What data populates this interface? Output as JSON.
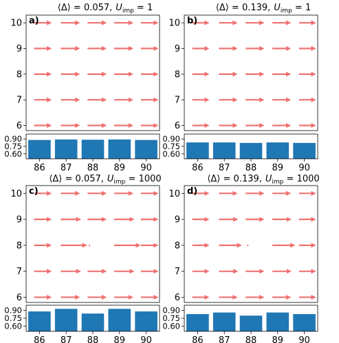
{
  "colors": {
    "arrow": "#f07070",
    "bar": "#1f77b4",
    "axis": "#000000"
  },
  "chart_data": [
    {
      "type": "quiver",
      "panel_label": "a)",
      "title_delta": "⟨Δ⟩ = 0.057,",
      "title_u": "1",
      "x_ticks": [
        86,
        87,
        88,
        89,
        90
      ],
      "y_ticks": [
        6,
        7,
        8,
        9,
        10
      ],
      "xlim": [
        85.5,
        90.5
      ],
      "ylim": [
        5.8,
        10.3
      ],
      "arrows": [
        {
          "y": 10,
          "lengths": [
            0.62,
            0.68,
            0.68,
            0.68,
            0.62
          ]
        },
        {
          "y": 9,
          "lengths": [
            0.62,
            0.68,
            0.68,
            0.68,
            0.62
          ]
        },
        {
          "y": 8,
          "lengths": [
            0.62,
            0.68,
            0.68,
            0.68,
            0.62
          ]
        },
        {
          "y": 7,
          "lengths": [
            0.62,
            0.68,
            0.68,
            0.68,
            0.62
          ]
        },
        {
          "y": 6,
          "lengths": [
            0.62,
            0.68,
            0.68,
            0.68,
            0.62
          ]
        }
      ],
      "bar_values": [
        0.88,
        0.89,
        0.885,
        0.89,
        0.88
      ],
      "bar_yticks": [
        "0.90",
        "0.75",
        "0.60"
      ],
      "bar_ylim": [
        0.5,
        1.0
      ]
    },
    {
      "type": "quiver",
      "panel_label": "b)",
      "title_delta": "⟨Δ⟩ = 0.139,",
      "title_u": "1",
      "x_ticks": [
        86,
        87,
        88,
        89,
        90
      ],
      "y_ticks": [
        6,
        7,
        8,
        9,
        10
      ],
      "xlim": [
        85.5,
        90.5
      ],
      "ylim": [
        5.8,
        10.3
      ],
      "arrows": [
        {
          "y": 10,
          "lengths": [
            0.6,
            0.66,
            0.66,
            0.66,
            0.6
          ]
        },
        {
          "y": 9,
          "lengths": [
            0.6,
            0.66,
            0.66,
            0.66,
            0.6
          ]
        },
        {
          "y": 8,
          "lengths": [
            0.6,
            0.66,
            0.66,
            0.66,
            0.6
          ]
        },
        {
          "y": 7,
          "lengths": [
            0.6,
            0.66,
            0.66,
            0.66,
            0.6
          ]
        },
        {
          "y": 6,
          "lengths": [
            0.6,
            0.66,
            0.66,
            0.66,
            0.6
          ]
        }
      ],
      "bar_values": [
        0.83,
        0.83,
        0.82,
        0.83,
        0.82
      ],
      "bar_yticks": [
        "0.90",
        "0.75",
        "0.60"
      ],
      "bar_ylim": [
        0.5,
        1.0
      ]
    },
    {
      "type": "quiver",
      "panel_label": "c)",
      "title_delta": "⟨Δ⟩ = 0.057,",
      "title_u": "1000",
      "x_ticks": [
        86,
        87,
        88,
        89,
        90
      ],
      "y_ticks": [
        6,
        7,
        8,
        9,
        10
      ],
      "xlim": [
        85.5,
        90.5
      ],
      "ylim": [
        5.8,
        10.3
      ],
      "arrows": [
        {
          "y": 10,
          "lengths": [
            0.62,
            0.68,
            0.68,
            0.68,
            0.62
          ]
        },
        {
          "y": 9,
          "lengths": [
            0.62,
            0.72,
            0.68,
            0.72,
            0.62
          ]
        },
        {
          "y": 8,
          "lengths": [
            0.62,
            0.95,
            0.02,
            0.95,
            0.62
          ]
        },
        {
          "y": 7,
          "lengths": [
            0.62,
            0.72,
            0.68,
            0.72,
            0.62
          ]
        },
        {
          "y": 6,
          "lengths": [
            0.62,
            0.68,
            0.68,
            0.68,
            0.62
          ]
        }
      ],
      "bar_values": [
        0.88,
        0.93,
        0.84,
        0.93,
        0.88
      ],
      "bar_yticks": [
        "0.90",
        "0.75",
        "0.60"
      ],
      "bar_ylim": [
        0.5,
        1.0
      ]
    },
    {
      "type": "quiver",
      "panel_label": "d)",
      "title_delta": "⟨Δ⟩ = 0.139,",
      "title_u": "1000",
      "x_ticks": [
        86,
        87,
        88,
        89,
        90
      ],
      "y_ticks": [
        6,
        7,
        8,
        9,
        10
      ],
      "xlim": [
        85.5,
        90.5
      ],
      "ylim": [
        5.8,
        10.3
      ],
      "arrows": [
        {
          "y": 10,
          "lengths": [
            0.6,
            0.66,
            0.66,
            0.66,
            0.6
          ]
        },
        {
          "y": 9,
          "lengths": [
            0.6,
            0.68,
            0.66,
            0.68,
            0.6
          ]
        },
        {
          "y": 8,
          "lengths": [
            0.6,
            0.82,
            0.02,
            0.82,
            0.6
          ]
        },
        {
          "y": 7,
          "lengths": [
            0.6,
            0.68,
            0.66,
            0.68,
            0.6
          ]
        },
        {
          "y": 6,
          "lengths": [
            0.6,
            0.66,
            0.66,
            0.66,
            0.6
          ]
        }
      ],
      "bar_values": [
        0.83,
        0.86,
        0.8,
        0.86,
        0.83
      ],
      "bar_yticks": [
        "0.90",
        "0.75",
        "0.60"
      ],
      "bar_ylim": [
        0.5,
        1.0
      ]
    }
  ]
}
